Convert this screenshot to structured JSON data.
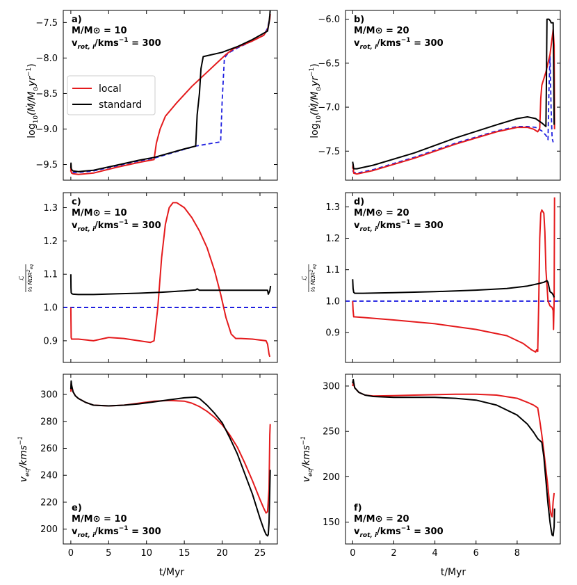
{
  "colors": {
    "local": "#e41a1c",
    "standard": "#000000",
    "dashed": "#1f1fe0"
  },
  "legend": {
    "local": "local",
    "standard": "standard"
  },
  "xlabel": "t/Myr",
  "ylabels": {
    "mdot_pre": "log",
    "mdot_sub": "10",
    "mdot_post": "(Ṁ/M",
    "mdot_sun": "⊙",
    "mdot_yr": "yr",
    "mdot_exp": "−1",
    "mdot_close": ")",
    "ratio_num": "ℒ̇",
    "ratio_den": "⅔ ṀΩR",
    "ratio_den_sub": "eq",
    "ratio_den_sup": "2",
    "veq_v": "v",
    "veq_sub": "eq",
    "veq_rest": "/kms",
    "veq_exp": "−1"
  },
  "chart_data": [
    {
      "type": "line",
      "id": "a",
      "annotation": {
        "label": "a)",
        "mass": "M/M⊙ = 10",
        "vrot": "v",
        "vrot_sub": "rot, i",
        "vrot_rest": "/kms",
        "vrot_exp": "−1",
        "vrot_val": " = 300"
      },
      "xlim": [
        -1,
        27.3
      ],
      "ylim": [
        -9.72,
        -7.33
      ],
      "xticks": [
        0,
        5,
        10,
        15,
        20,
        25
      ],
      "yticks": [
        -9.5,
        -9.0,
        -8.5,
        -8.0,
        -7.5
      ],
      "ytick_labels": [
        "−9.5",
        "−9.0",
        "−8.5",
        "−8.0",
        "−7.5"
      ],
      "series": [
        {
          "name": "local",
          "style": "local",
          "x": [
            0,
            0.02,
            0.05,
            0.1,
            0.3,
            1,
            3,
            6,
            9,
            11,
            11.3,
            11.8,
            12.5,
            14,
            16,
            18,
            19.5,
            20.5,
            21.5,
            24,
            25.5,
            26,
            26.2,
            26.3,
            26.35
          ],
          "y": [
            -9.6,
            -9.5,
            -9.6,
            -9.62,
            -9.63,
            -9.64,
            -9.62,
            -9.54,
            -9.47,
            -9.43,
            -9.2,
            -9.0,
            -8.82,
            -8.63,
            -8.4,
            -8.2,
            -8.05,
            -7.95,
            -7.87,
            -7.76,
            -7.68,
            -7.6,
            -7.5,
            -7.45,
            -7.38
          ]
        },
        {
          "name": "standard",
          "style": "standard",
          "x": [
            0,
            0.02,
            0.05,
            0.1,
            0.3,
            1,
            3,
            6,
            9,
            11,
            13,
            15,
            16.5,
            16.7,
            17,
            17.2,
            17.5,
            20,
            22,
            24,
            26,
            26.2,
            26.3,
            26.35
          ],
          "y": [
            -9.55,
            -9.48,
            -9.55,
            -9.57,
            -9.59,
            -9.6,
            -9.58,
            -9.51,
            -9.44,
            -9.4,
            -9.34,
            -9.28,
            -9.24,
            -8.8,
            -8.5,
            -8.15,
            -7.98,
            -7.92,
            -7.84,
            -7.74,
            -7.62,
            -7.5,
            -7.4,
            -7.32
          ]
        },
        {
          "name": "standard (dashed)",
          "style": "dashed",
          "x": [
            0,
            0.05,
            0.1,
            0.3,
            1,
            3,
            6,
            9,
            11,
            16.5,
            19.8,
            20,
            20.3,
            20.8,
            22,
            24,
            25.5,
            26,
            26.2
          ],
          "y": [
            -9.52,
            -9.58,
            -9.6,
            -9.61,
            -9.61,
            -9.59,
            -9.52,
            -9.45,
            -9.41,
            -9.24,
            -9.18,
            -8.6,
            -8.0,
            -7.93,
            -7.86,
            -7.76,
            -7.68,
            -7.58,
            -7.48
          ]
        }
      ]
    },
    {
      "type": "line",
      "id": "b",
      "annotation": {
        "label": "b)",
        "mass": "M/M⊙ = 20",
        "vrot": "v",
        "vrot_sub": "rot, i",
        "vrot_rest": "/kms",
        "vrot_exp": "−1",
        "vrot_val": " = 300"
      },
      "xlim": [
        -0.35,
        10.1
      ],
      "ylim": [
        -7.83,
        -5.9
      ],
      "xticks": [
        0,
        2,
        4,
        6,
        8
      ],
      "yticks": [
        -7.5,
        -7.0,
        -6.5,
        -6.0
      ],
      "ytick_labels": [
        "−7.5",
        "−7.0",
        "−6.5",
        "−6.0"
      ],
      "series": [
        {
          "name": "local",
          "style": "local",
          "x": [
            0,
            0.02,
            0.05,
            0.2,
            1,
            3,
            5,
            7,
            8,
            8.5,
            8.8,
            9.0,
            9.1,
            9.15,
            9.2,
            9.4,
            9.6,
            9.75,
            9.8,
            9.82
          ],
          "y": [
            -7.7,
            -7.65,
            -7.75,
            -7.76,
            -7.72,
            -7.58,
            -7.42,
            -7.28,
            -7.23,
            -7.23,
            -7.25,
            -7.28,
            -7.24,
            -6.9,
            -6.75,
            -6.6,
            -6.4,
            -6.12,
            -6.3,
            -7.25
          ]
        },
        {
          "name": "standard",
          "style": "standard",
          "x": [
            0,
            0.02,
            0.05,
            0.2,
            1,
            3,
            5,
            7,
            8,
            8.5,
            8.9,
            9.2,
            9.4,
            9.42,
            9.45,
            9.55,
            9.62,
            9.65,
            9.7,
            9.75,
            9.78,
            9.8
          ],
          "y": [
            -7.62,
            -7.65,
            -7.7,
            -7.7,
            -7.66,
            -7.52,
            -7.35,
            -7.2,
            -7.13,
            -7.11,
            -7.13,
            -7.18,
            -7.22,
            -6.8,
            -6.0,
            -6.0,
            -6.02,
            -6.04,
            -6.04,
            -6.04,
            -6.6,
            -7.2
          ]
        },
        {
          "name": "standard (dashed)",
          "style": "dashed",
          "x": [
            0,
            0.05,
            0.2,
            1,
            3,
            5,
            7,
            8,
            8.5,
            8.9,
            9.2,
            9.4,
            9.5,
            9.55,
            9.6,
            9.65,
            9.7,
            9.75
          ],
          "y": [
            -7.72,
            -7.74,
            -7.75,
            -7.71,
            -7.57,
            -7.41,
            -7.27,
            -7.22,
            -7.22,
            -7.23,
            -7.27,
            -7.32,
            -7.37,
            -6.8,
            -6.42,
            -7.0,
            -7.35,
            -7.4
          ]
        }
      ]
    },
    {
      "type": "line",
      "id": "c",
      "annotation": {
        "label": "c)",
        "mass": "M/M⊙ = 10",
        "vrot": "v",
        "vrot_sub": "rot, i",
        "vrot_rest": "/kms",
        "vrot_exp": "−1",
        "vrot_val": " = 300"
      },
      "xlim": [
        -1,
        27.3
      ],
      "ylim": [
        0.835,
        1.345
      ],
      "xticks": [
        0,
        5,
        10,
        15,
        20,
        25
      ],
      "yticks": [
        0.9,
        1.0,
        1.1,
        1.2,
        1.3
      ],
      "ytick_labels": [
        "0.9",
        "1.0",
        "1.1",
        "1.2",
        "1.3"
      ],
      "hline": {
        "y": 1.0,
        "style": "dashed"
      },
      "series": [
        {
          "name": "local",
          "style": "local",
          "x": [
            0,
            0.02,
            0.05,
            0.1,
            0.3,
            1,
            3,
            5,
            7,
            9,
            10.5,
            11,
            11.5,
            12,
            12.5,
            13,
            13.5,
            14,
            15,
            16,
            17,
            18,
            19,
            19.8,
            20.5,
            21.2,
            21.8,
            22.5,
            24,
            25.8,
            26,
            26.2,
            26.3
          ],
          "y": [
            1.0,
            0.96,
            0.91,
            0.905,
            0.905,
            0.905,
            0.9,
            0.91,
            0.907,
            0.9,
            0.895,
            0.9,
            1.0,
            1.15,
            1.25,
            1.3,
            1.315,
            1.315,
            1.3,
            1.27,
            1.23,
            1.18,
            1.11,
            1.04,
            0.97,
            0.92,
            0.907,
            0.907,
            0.905,
            0.9,
            0.89,
            0.86,
            0.852
          ]
        },
        {
          "name": "standard",
          "style": "standard",
          "x": [
            0,
            0.02,
            0.05,
            0.1,
            0.3,
            1,
            3,
            6,
            9,
            12,
            15,
            16.5,
            16.7,
            17,
            18,
            20,
            22,
            24,
            25.5,
            26,
            26.1,
            26.3,
            26.4
          ],
          "y": [
            1.1,
            1.06,
            1.045,
            1.042,
            1.04,
            1.039,
            1.039,
            1.041,
            1.043,
            1.046,
            1.05,
            1.053,
            1.056,
            1.052,
            1.052,
            1.052,
            1.052,
            1.052,
            1.052,
            1.052,
            1.04,
            1.05,
            1.065
          ]
        }
      ]
    },
    {
      "type": "line",
      "id": "d",
      "annotation": {
        "label": "d)",
        "mass": "M/M⊙ = 20",
        "vrot": "v",
        "vrot_sub": "rot, i",
        "vrot_rest": "/kms",
        "vrot_exp": "−1",
        "vrot_val": " = 300"
      },
      "xlim": [
        -0.35,
        10.1
      ],
      "ylim": [
        0.805,
        1.345
      ],
      "xticks": [
        0,
        2,
        4,
        6,
        8
      ],
      "yticks": [
        0.9,
        1.0,
        1.1,
        1.2,
        1.3
      ],
      "ytick_labels": [
        "0.9",
        "1.0",
        "1.1",
        "1.2",
        "1.3"
      ],
      "hline": {
        "y": 1.0,
        "style": "dashed"
      },
      "series": [
        {
          "name": "local",
          "style": "local",
          "x": [
            0,
            0.02,
            0.05,
            0.1,
            0.5,
            2,
            4,
            6,
            7.5,
            8.3,
            8.7,
            8.9,
            8.95,
            9.0,
            9.05,
            9.1,
            9.15,
            9.2,
            9.3,
            9.35,
            9.4,
            9.5,
            9.6,
            9.7,
            9.75,
            9.77,
            9.8,
            9.82
          ],
          "y": [
            1.0,
            0.97,
            0.95,
            0.95,
            0.948,
            0.94,
            0.928,
            0.91,
            0.89,
            0.865,
            0.845,
            0.838,
            0.845,
            0.84,
            1.0,
            1.2,
            1.28,
            1.29,
            1.28,
            1.22,
            1.1,
            1.0,
            0.985,
            0.98,
            0.97,
            0.91,
            1.0,
            1.33
          ]
        },
        {
          "name": "standard",
          "style": "standard",
          "x": [
            0,
            0.02,
            0.05,
            0.1,
            0.5,
            2,
            4,
            6,
            7.5,
            8.5,
            9.0,
            9.3,
            9.45,
            9.5,
            9.55,
            9.6,
            9.7,
            9.75,
            9.8
          ],
          "y": [
            1.07,
            1.04,
            1.028,
            1.025,
            1.025,
            1.027,
            1.03,
            1.035,
            1.04,
            1.048,
            1.055,
            1.06,
            1.065,
            1.06,
            1.045,
            1.03,
            1.025,
            1.02,
            1.012
          ]
        }
      ]
    },
    {
      "type": "line",
      "id": "e",
      "annotation": {
        "label": "e)",
        "mass": "M/M⊙ = 10",
        "vrot": "v",
        "vrot_sub": "rot, i",
        "vrot_rest": "/kms",
        "vrot_exp": "−1",
        "vrot_val": " = 300"
      },
      "xlim": [
        -1,
        27.3
      ],
      "ylim": [
        189,
        315
      ],
      "xticks": [
        0,
        5,
        10,
        15,
        20,
        25
      ],
      "yticks": [
        200,
        220,
        240,
        260,
        280,
        300
      ],
      "ytick_labels": [
        "200",
        "220",
        "240",
        "260",
        "280",
        "300"
      ],
      "series": [
        {
          "name": "local",
          "style": "local",
          "x": [
            0,
            0.05,
            0.1,
            0.3,
            0.6,
            1,
            2,
            3,
            5,
            7,
            9,
            11,
            13,
            15,
            16,
            17,
            18,
            19,
            20,
            21,
            22,
            23,
            24,
            25,
            25.5,
            25.8,
            26,
            26.2,
            26.3,
            26.35
          ],
          "y": [
            302,
            308,
            306,
            302,
            299,
            297,
            294,
            292,
            291.5,
            292,
            293.5,
            295,
            295.5,
            295,
            293.5,
            291,
            287.5,
            283,
            277.5,
            270,
            261,
            249,
            236,
            222,
            215.5,
            212,
            213,
            230,
            270,
            278
          ]
        },
        {
          "name": "standard",
          "style": "standard",
          "x": [
            0,
            0.05,
            0.1,
            0.3,
            0.6,
            1,
            2,
            3,
            5,
            7,
            9,
            11,
            13,
            15,
            16.5,
            17,
            18,
            19,
            20,
            21,
            22,
            23,
            24,
            25,
            25.5,
            25.8,
            26,
            26.1,
            26.2,
            26.3,
            26.35
          ],
          "y": [
            304,
            310,
            307,
            302,
            299,
            297,
            294,
            292,
            291.5,
            292,
            293,
            294.5,
            296,
            297.5,
            298,
            297,
            292,
            286,
            279,
            268,
            256,
            241,
            226,
            208,
            200,
            196,
            195,
            196,
            205,
            230,
            244
          ]
        }
      ]
    },
    {
      "type": "line",
      "id": "f",
      "annotation": {
        "label": "f)",
        "mass": "M/M⊙ = 20",
        "vrot": "v",
        "vrot_sub": "rot, i",
        "vrot_rest": "/kms",
        "vrot_exp": "−1",
        "vrot_val": " = 300"
      },
      "xlim": [
        -0.35,
        10.1
      ],
      "ylim": [
        126,
        313
      ],
      "xticks": [
        0,
        2,
        4,
        6,
        8
      ],
      "yticks": [
        150,
        200,
        250,
        300
      ],
      "ytick_labels": [
        "150",
        "200",
        "250",
        "300"
      ],
      "series": [
        {
          "name": "local",
          "style": "local",
          "x": [
            0,
            0.03,
            0.05,
            0.1,
            0.3,
            0.6,
            1,
            2,
            3,
            4,
            5,
            6,
            7,
            8,
            8.5,
            8.8,
            9.0,
            9.1,
            9.2,
            9.3,
            9.4,
            9.5,
            9.6,
            9.65,
            9.7,
            9.72,
            9.75,
            9.78,
            9.8
          ],
          "y": [
            300,
            304,
            302,
            298,
            293,
            290,
            289,
            289.5,
            290,
            290.5,
            291,
            291,
            290,
            286.5,
            282,
            279,
            276,
            262,
            246,
            228,
            208,
            188,
            165,
            158,
            156,
            162,
            173,
            178,
            182
          ]
        },
        {
          "name": "standard",
          "style": "standard",
          "x": [
            0,
            0.03,
            0.05,
            0.1,
            0.3,
            0.6,
            1,
            2,
            3,
            4,
            5,
            6,
            7,
            8,
            8.5,
            8.8,
            9.0,
            9.1,
            9.2,
            9.3,
            9.4,
            9.5,
            9.6,
            9.65,
            9.7,
            9.75,
            9.8,
            9.82
          ],
          "y": [
            303,
            307,
            304,
            298,
            293,
            290,
            288.5,
            287.5,
            287.5,
            287.5,
            286.5,
            284.5,
            279,
            268,
            258,
            249,
            242,
            240,
            238,
            222,
            196,
            170,
            150,
            142,
            136,
            135,
            145,
            165
          ]
        }
      ]
    }
  ]
}
